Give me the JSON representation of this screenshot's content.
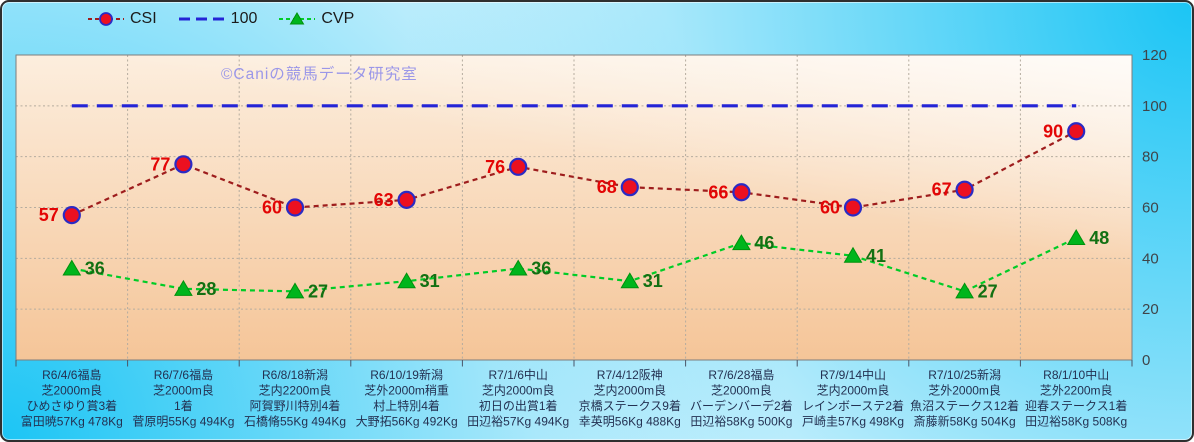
{
  "watermark": "©Caniの競馬データ研究室",
  "legend": {
    "items": [
      "CSI",
      "100",
      "CVP"
    ]
  },
  "chart_data": {
    "type": "line",
    "title": "",
    "legend_position": "top",
    "grid": true,
    "ylim": [
      0,
      120
    ],
    "yticks": [
      0,
      20,
      40,
      60,
      80,
      100,
      120
    ],
    "categories": [
      [
        "R6/4/6福島",
        "芝2000m良",
        "ひめさゆり賞3着",
        "富田暁57Kg 478Kg"
      ],
      [
        "R6/7/6福島",
        "芝2000m良",
        "1着",
        "菅原明55Kg 494Kg"
      ],
      [
        "R6/8/18新潟",
        "芝内2200m良",
        "阿賀野川特別4着",
        "石橋脩55Kg 494Kg"
      ],
      [
        "R6/10/19新潟",
        "芝外2000m稍重",
        "村上特別4着",
        "大野拓56Kg 492Kg"
      ],
      [
        "R7/1/6中山",
        "芝内2000m良",
        "初日の出賞1着",
        "田辺裕57Kg 494Kg"
      ],
      [
        "R7/4/12阪神",
        "芝内2000m良",
        "京橋ステークス9着",
        "幸英明56Kg 488Kg"
      ],
      [
        "R7/6/28福島",
        "芝2000m良",
        "バーデンバーデ2着",
        "田辺裕58Kg 500Kg"
      ],
      [
        "R7/9/14中山",
        "芝内2000m良",
        "レインボーステ2着",
        "戸崎圭57Kg 498Kg"
      ],
      [
        "R7/10/25新潟",
        "芝外2000m良",
        "魚沼ステークス12着",
        "斎藤新58Kg 504Kg"
      ],
      [
        "R8/1/10中山",
        "芝外2200m良",
        "迎春ステークス1着",
        "田辺裕58Kg 508Kg"
      ]
    ],
    "series": [
      {
        "name": "CSI",
        "values": [
          57,
          77,
          60,
          63,
          76,
          68,
          66,
          60,
          67,
          90
        ],
        "line_color": "#9e1d1d",
        "dash": "5 4",
        "line_width": 2.2,
        "marker": "circle",
        "marker_fill": "#ec1020",
        "marker_stroke": "#2b2bc4",
        "labels": true,
        "label_color": "#e30505",
        "label_side": "left"
      },
      {
        "name": "100",
        "values": [
          100,
          100,
          100,
          100,
          100,
          100,
          100,
          100,
          100,
          100
        ],
        "line_color": "#2424d6",
        "dash": "16 9",
        "line_width": 3.2,
        "marker": "none",
        "labels": false,
        "label_color": "#2424d6",
        "label_side": "right"
      },
      {
        "name": "CVP",
        "values": [
          36,
          28,
          27,
          31,
          36,
          31,
          46,
          41,
          27,
          48
        ],
        "line_color": "#00cc26",
        "dash": "5 4",
        "line_width": 2.2,
        "marker": "triangle",
        "marker_fill": "#00b51c",
        "marker_stroke": "#00910c",
        "labels": true,
        "label_color": "#127012",
        "label_side": "right"
      }
    ],
    "colors": {
      "plot_bg_top": "#fceede",
      "plot_bg_bottom": "#f5c598",
      "grid": "#b5ac9f",
      "plot_border": "#7d7d7d",
      "tick": "#4a5568",
      "y_label": "#3f4449",
      "x_label": "#233152"
    }
  }
}
